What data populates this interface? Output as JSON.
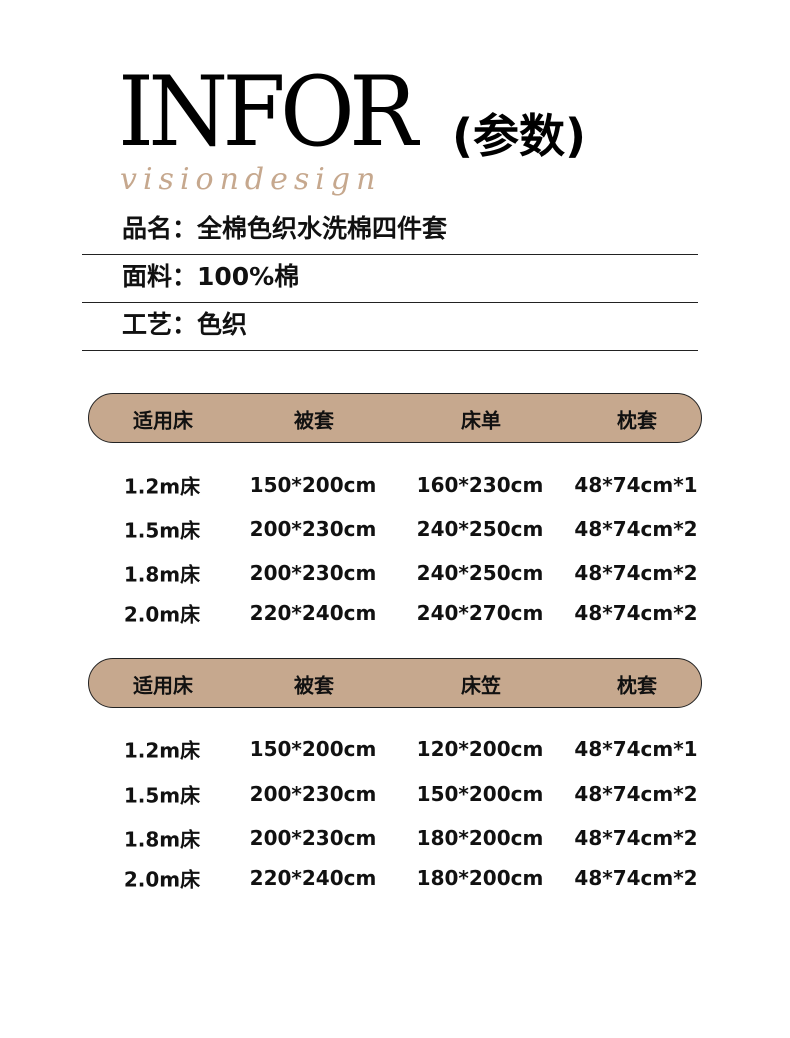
{
  "header": {
    "title_en": "INFOR",
    "title_cn": "(参数)",
    "script_logo": "visiondesign"
  },
  "info": [
    {
      "text": "品名：全棉色织水洗棉四件套"
    },
    {
      "text": "面料：100%棉"
    },
    {
      "text": "工艺：色织"
    }
  ],
  "tables": [
    {
      "headers": [
        "适用床",
        "被套",
        "床单",
        "枕套"
      ],
      "rows": [
        [
          "1.2m床",
          "150*200cm",
          "160*230cm",
          "48*74cm*1"
        ],
        [
          "1.5m床",
          "200*230cm",
          "240*250cm",
          "48*74cm*2"
        ],
        [
          "1.8m床",
          "200*230cm",
          "240*250cm",
          "48*74cm*2"
        ],
        [
          "2.0m床",
          "220*240cm",
          "240*270cm",
          "48*74cm*2"
        ]
      ]
    },
    {
      "headers": [
        "适用床",
        "被套",
        "床笠",
        "枕套"
      ],
      "rows": [
        [
          "1.2m床",
          "150*200cm",
          "120*200cm",
          "48*74cm*1"
        ],
        [
          "1.5m床",
          "200*230cm",
          "150*200cm",
          "48*74cm*2"
        ],
        [
          "1.8m床",
          "200*230cm",
          "180*200cm",
          "48*74cm*2"
        ],
        [
          "2.0m床",
          "220*240cm",
          "180*200cm",
          "48*74cm*2"
        ]
      ]
    }
  ],
  "colors": {
    "accent": "#c6a88e",
    "text": "#111111"
  }
}
